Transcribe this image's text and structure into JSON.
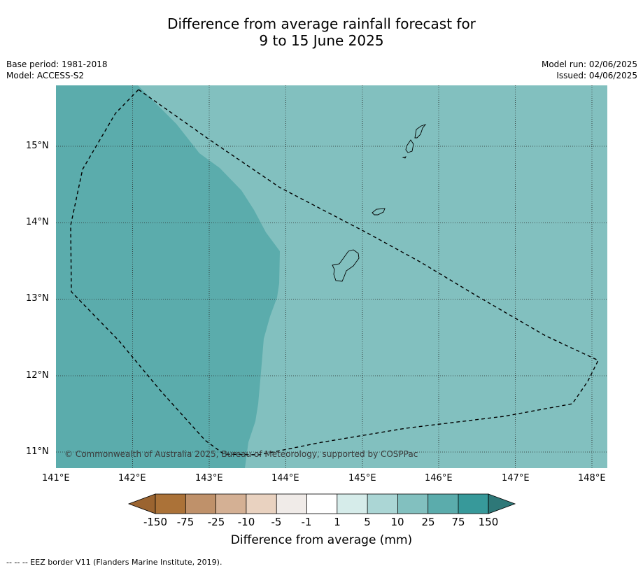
{
  "title_line1": "Difference from average rainfall forecast for",
  "title_line2": "9 to 15 June 2025",
  "left_meta": {
    "base_period": "Base period: 1981-2018",
    "model": "Model: ACCESS-S2"
  },
  "right_meta": {
    "model_run": "Model run: 02/06/2025",
    "issued": "Issued: 04/06/2025"
  },
  "map": {
    "lon_range": [
      141,
      148.2
    ],
    "lat_range": [
      10.8,
      15.8
    ],
    "lat_ticks": [
      "15°N",
      "14°N",
      "13°N",
      "12°N",
      "11°N"
    ],
    "lon_ticks": [
      "141°E",
      "142°E",
      "143°E",
      "144°E",
      "145°E",
      "146°E",
      "147°E",
      "148°E"
    ],
    "fill_colors": {
      "band_10_25": "#82c0bf",
      "band_25_75": "#5bacac"
    },
    "copyright": "© Commonwealth of Australia 2025, Bureau of Meteorology, supported by COSPPac"
  },
  "colorbar": {
    "labels": [
      "-150",
      "-75",
      "-25",
      "-10",
      "-5",
      "-1",
      "1",
      "5",
      "10",
      "25",
      "75",
      "150"
    ],
    "colors": [
      "#ab7238",
      "#bf916a",
      "#d4b094",
      "#e9d2c0",
      "#f0ebe8",
      "#ffffff",
      "#d6ecea",
      "#abd6d5",
      "#82c0bf",
      "#5bacac",
      "#37999a"
    ],
    "low_extend_color": "#9b6430",
    "high_extend_color": "#2e7878",
    "title": "Difference from average (mm)"
  },
  "footnote": "--  --  -- EEZ border V11 (Flanders Marine Institute, 2019)."
}
